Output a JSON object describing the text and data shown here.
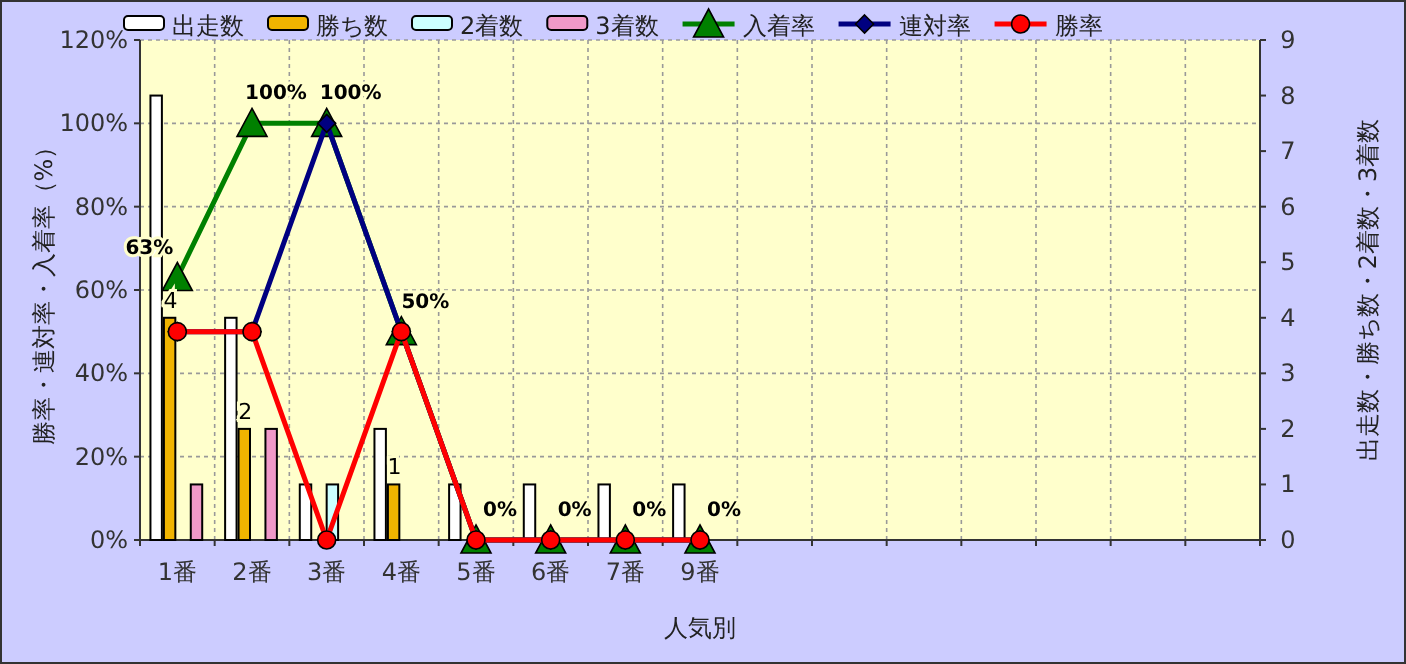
{
  "chart_data": {
    "type": "bar",
    "xlabel": "人気別",
    "ylabel": "勝率・連対率・入着率（%）",
    "y2label": "出走数・勝ち数・2着数・3着数",
    "categories": [
      "1番",
      "2番",
      "3番",
      "4番",
      "5番",
      "6番",
      "7番",
      "9番",
      null,
      null,
      null,
      null,
      null,
      null,
      null
    ],
    "ylim": [
      0,
      120
    ],
    "yticks": [
      {
        "value": 0,
        "label": "0%"
      },
      {
        "value": 20,
        "label": "20%"
      },
      {
        "value": 40,
        "label": "40%"
      },
      {
        "value": 60,
        "label": "60%"
      },
      {
        "value": 80,
        "label": "80%"
      },
      {
        "value": 100,
        "label": "100%"
      },
      {
        "value": 120,
        "label": "120%"
      }
    ],
    "y2lim": [
      0,
      9
    ],
    "y2ticks": [
      0,
      1,
      2,
      3,
      4,
      5,
      6,
      7,
      8,
      9
    ],
    "grid": true,
    "legend": "top",
    "series": [
      {
        "name": "出走数",
        "axis": "y2",
        "color": "#ffffff",
        "values": [
          8,
          4,
          1,
          2,
          1,
          1,
          1,
          1,
          null,
          null,
          null,
          null,
          null,
          null,
          null
        ]
      },
      {
        "name": "勝ち数",
        "axis": "y2",
        "color": "#f0b400",
        "values": [
          4,
          2,
          0,
          1,
          0,
          0,
          0,
          0,
          null,
          null,
          null,
          null,
          null,
          null,
          null
        ],
        "value_labels": [
          "4",
          "2",
          null,
          "1",
          null,
          null,
          null,
          null,
          null,
          null,
          null,
          null,
          null,
          null,
          null
        ]
      },
      {
        "name": "2着数",
        "axis": "y2",
        "color": "#ccffff",
        "values": [
          0,
          0,
          1,
          0,
          0,
          0,
          0,
          0,
          null,
          null,
          null,
          null,
          null,
          null,
          null
        ]
      },
      {
        "name": "3着数",
        "axis": "y2",
        "color": "#f099c8",
        "values": [
          1,
          2,
          0,
          0,
          0,
          0,
          0,
          0,
          null,
          null,
          null,
          null,
          null,
          null,
          null
        ]
      },
      {
        "name": "入着率",
        "type": "line",
        "color": "#008000",
        "marker": "triangle",
        "values": [
          63,
          100,
          100,
          50,
          0,
          0,
          0,
          0,
          null,
          null,
          null,
          null,
          null,
          null,
          null
        ],
        "value_labels": [
          "63%",
          "100%",
          "100%",
          "50%",
          "0%",
          "0%",
          "0%",
          "0%",
          null,
          null,
          null,
          null,
          null,
          null,
          null
        ]
      },
      {
        "name": "連対率",
        "type": "line",
        "color": "#000080",
        "marker": "diamond",
        "values": [
          50,
          50,
          100,
          50,
          0,
          0,
          0,
          0,
          null,
          null,
          null,
          null,
          null,
          null,
          null
        ]
      },
      {
        "name": "勝率",
        "type": "line",
        "color": "#ff0000",
        "marker": "circle",
        "values": [
          50,
          50,
          0,
          50,
          0,
          0,
          0,
          0,
          null,
          null,
          null,
          null,
          null,
          null,
          null
        ]
      }
    ]
  }
}
